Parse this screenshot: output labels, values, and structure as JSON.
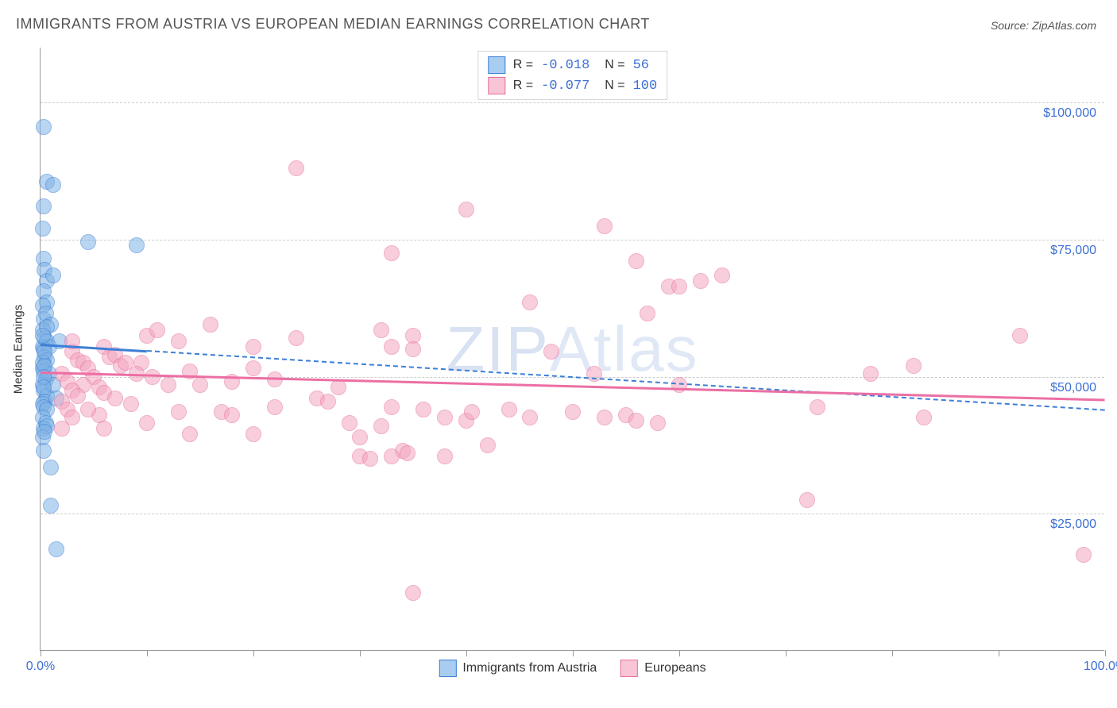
{
  "title": "IMMIGRANTS FROM AUSTRIA VS EUROPEAN MEDIAN EARNINGS CORRELATION CHART",
  "source": "Source: ZipAtlas.com",
  "watermark_a": "ZIP",
  "watermark_b": "Atlas",
  "chart": {
    "type": "scatter",
    "y_axis_label": "Median Earnings",
    "xlim": [
      0,
      100
    ],
    "ylim": [
      0,
      110000
    ],
    "x_ticks": [
      0,
      10,
      20,
      30,
      40,
      50,
      60,
      70,
      80,
      90,
      100
    ],
    "x_tick_labels_shown": {
      "0": "0.0%",
      "100": "100.0%"
    },
    "y_gridlines": [
      25000,
      50000,
      75000,
      100000
    ],
    "y_tick_labels": {
      "25000": "$25,000",
      "50000": "$50,000",
      "75000": "$75,000",
      "100000": "$100,000"
    },
    "grid_color": "#cccccc",
    "axis_color": "#999999",
    "background_color": "#ffffff",
    "tick_label_color": "#3d6fd6",
    "tick_label_fontsize": 16,
    "title_fontsize": 18,
    "title_color": "#555555",
    "marker_radius": 10,
    "marker_opacity": 0.55,
    "series": [
      {
        "name": "Immigrants from Austria",
        "fill_color": "#7fb3e6",
        "stroke_color": "#3d7fd6",
        "R": "-0.018",
        "N": "56",
        "trend": {
          "x1": 0,
          "y1": 56000,
          "x2": 100,
          "y2": 44000,
          "solid_until_x": 10,
          "color": "#3d7fd6",
          "width": 3
        },
        "points": [
          [
            0.3,
            95500
          ],
          [
            0.6,
            85500
          ],
          [
            1.2,
            85000
          ],
          [
            0.3,
            81000
          ],
          [
            0.2,
            77000
          ],
          [
            4.5,
            74500
          ],
          [
            9.0,
            74000
          ],
          [
            0.3,
            71500
          ],
          [
            0.4,
            69500
          ],
          [
            0.6,
            67500
          ],
          [
            1.2,
            68500
          ],
          [
            0.3,
            65500
          ],
          [
            0.6,
            63500
          ],
          [
            0.2,
            63000
          ],
          [
            0.3,
            60500
          ],
          [
            0.5,
            61500
          ],
          [
            1.0,
            59500
          ],
          [
            0.2,
            58500
          ],
          [
            0.4,
            57000
          ],
          [
            0.6,
            56500
          ],
          [
            0.2,
            55500
          ],
          [
            0.3,
            55000
          ],
          [
            0.8,
            55500
          ],
          [
            1.8,
            56500
          ],
          [
            0.4,
            53500
          ],
          [
            0.6,
            53000
          ],
          [
            0.2,
            51500
          ],
          [
            0.3,
            51000
          ],
          [
            0.5,
            49500
          ],
          [
            0.8,
            50500
          ],
          [
            0.2,
            48500
          ],
          [
            0.3,
            47500
          ],
          [
            0.6,
            46500
          ],
          [
            1.2,
            48500
          ],
          [
            0.4,
            45500
          ],
          [
            0.2,
            45000
          ],
          [
            0.3,
            44500
          ],
          [
            0.6,
            44000
          ],
          [
            1.5,
            46000
          ],
          [
            0.2,
            42500
          ],
          [
            0.5,
            41500
          ],
          [
            0.3,
            40500
          ],
          [
            0.6,
            41000
          ],
          [
            0.2,
            39000
          ],
          [
            0.4,
            40000
          ],
          [
            0.3,
            36500
          ],
          [
            1.0,
            33500
          ],
          [
            0.2,
            52500
          ],
          [
            0.4,
            52000
          ],
          [
            0.3,
            50000
          ],
          [
            1.0,
            26500
          ],
          [
            1.5,
            18500
          ],
          [
            0.6,
            59000
          ],
          [
            0.2,
            57500
          ],
          [
            0.4,
            54500
          ],
          [
            0.3,
            48000
          ]
        ]
      },
      {
        "name": "Europeans",
        "fill_color": "#f4a6c0",
        "stroke_color": "#e86fa0",
        "R": "-0.077",
        "N": "100",
        "trend": {
          "x1": 0,
          "y1": 51000,
          "x2": 100,
          "y2": 46000,
          "solid_until_x": 100,
          "color": "#ec6fa4",
          "width": 3
        },
        "points": [
          [
            24.0,
            88000
          ],
          [
            40.0,
            80500
          ],
          [
            53.0,
            77500
          ],
          [
            59.0,
            66500
          ],
          [
            33.0,
            72500
          ],
          [
            56.0,
            71000
          ],
          [
            32.0,
            58500
          ],
          [
            35.0,
            57500
          ],
          [
            33.0,
            55500
          ],
          [
            35.0,
            55000
          ],
          [
            10.0,
            57500
          ],
          [
            11.0,
            58500
          ],
          [
            13.0,
            56500
          ],
          [
            16.0,
            59500
          ],
          [
            20.0,
            55500
          ],
          [
            24.0,
            57000
          ],
          [
            6.0,
            55500
          ],
          [
            6.5,
            53500
          ],
          [
            7.0,
            54000
          ],
          [
            7.5,
            52000
          ],
          [
            8.0,
            52500
          ],
          [
            9.5,
            52500
          ],
          [
            9.0,
            50500
          ],
          [
            10.5,
            50000
          ],
          [
            12.0,
            48500
          ],
          [
            14.0,
            51000
          ],
          [
            15.0,
            48500
          ],
          [
            18.0,
            49000
          ],
          [
            20.0,
            51500
          ],
          [
            22.0,
            49500
          ],
          [
            3.0,
            54500
          ],
          [
            3.5,
            53000
          ],
          [
            4.0,
            52500
          ],
          [
            4.5,
            51500
          ],
          [
            5.0,
            50000
          ],
          [
            4.0,
            48500
          ],
          [
            5.5,
            48000
          ],
          [
            6.0,
            47000
          ],
          [
            7.0,
            46000
          ],
          [
            8.5,
            45000
          ],
          [
            2.0,
            50500
          ],
          [
            2.5,
            49000
          ],
          [
            3.0,
            47500
          ],
          [
            3.5,
            46500
          ],
          [
            2.0,
            45500
          ],
          [
            2.5,
            44000
          ],
          [
            3.0,
            42500
          ],
          [
            17.0,
            43500
          ],
          [
            18.0,
            43000
          ],
          [
            22.0,
            44500
          ],
          [
            10.0,
            41500
          ],
          [
            13.0,
            43500
          ],
          [
            26.0,
            46000
          ],
          [
            27.0,
            45500
          ],
          [
            29.0,
            41500
          ],
          [
            30.0,
            39000
          ],
          [
            32.0,
            41000
          ],
          [
            33.0,
            44500
          ],
          [
            34.0,
            36500
          ],
          [
            36.0,
            44000
          ],
          [
            38.0,
            42500
          ],
          [
            40.0,
            42000
          ],
          [
            40.5,
            43500
          ],
          [
            42.0,
            37500
          ],
          [
            44.0,
            44000
          ],
          [
            46.0,
            42500
          ],
          [
            48.0,
            54500
          ],
          [
            50.0,
            43500
          ],
          [
            52.0,
            50500
          ],
          [
            53.0,
            42500
          ],
          [
            55.0,
            43000
          ],
          [
            56.0,
            42000
          ],
          [
            46.0,
            63500
          ],
          [
            60.0,
            48500
          ],
          [
            62.0,
            67500
          ],
          [
            64.0,
            68500
          ],
          [
            57.0,
            61500
          ],
          [
            60.0,
            66500
          ],
          [
            30.0,
            35500
          ],
          [
            31.0,
            35000
          ],
          [
            33.0,
            35500
          ],
          [
            34.5,
            36000
          ],
          [
            38.0,
            35500
          ],
          [
            28.0,
            48000
          ],
          [
            20.0,
            39500
          ],
          [
            14.0,
            39500
          ],
          [
            92.0,
            57500
          ],
          [
            82.0,
            52000
          ],
          [
            78.0,
            50500
          ],
          [
            73.0,
            44500
          ],
          [
            83.0,
            42500
          ],
          [
            72.0,
            27500
          ],
          [
            58.0,
            41500
          ],
          [
            5.5,
            43000
          ],
          [
            3.0,
            56500
          ],
          [
            2.0,
            40500
          ],
          [
            98.0,
            17500
          ],
          [
            35.0,
            10500
          ],
          [
            4.5,
            44000
          ],
          [
            6.0,
            40500
          ]
        ]
      }
    ],
    "bottom_legend": [
      {
        "swatch": "blue",
        "label": "Immigrants from Austria"
      },
      {
        "swatch": "pink",
        "label": "Europeans"
      }
    ]
  }
}
